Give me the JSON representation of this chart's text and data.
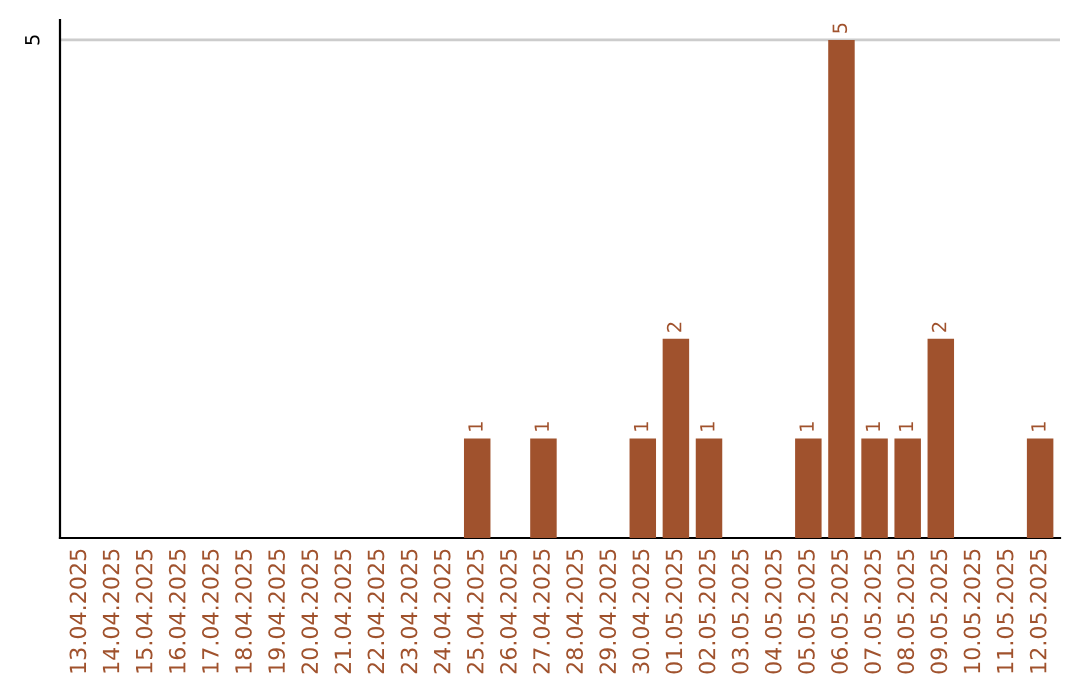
{
  "chart_data": {
    "type": "bar",
    "categories": [
      "13.04.2025",
      "14.04.2025",
      "15.04.2025",
      "16.04.2025",
      "17.04.2025",
      "18.04.2025",
      "19.04.2025",
      "20.04.2025",
      "21.04.2025",
      "22.04.2025",
      "23.04.2025",
      "24.04.2025",
      "25.04.2025",
      "26.04.2025",
      "27.04.2025",
      "28.04.2025",
      "29.04.2025",
      "30.04.2025",
      "01.05.2025",
      "02.05.2025",
      "03.05.2025",
      "04.05.2025",
      "05.05.2025",
      "06.05.2025",
      "07.05.2025",
      "08.05.2025",
      "09.05.2025",
      "10.05.2025",
      "11.05.2025",
      "12.05.2025"
    ],
    "values": [
      null,
      null,
      null,
      null,
      null,
      null,
      null,
      null,
      null,
      null,
      null,
      null,
      1,
      null,
      1,
      null,
      null,
      1,
      2,
      1,
      null,
      null,
      1,
      5,
      1,
      1,
      2,
      null,
      null,
      1
    ],
    "value_labels": [
      null,
      null,
      null,
      null,
      null,
      null,
      null,
      null,
      null,
      null,
      null,
      null,
      "1",
      null,
      "1",
      null,
      null,
      "1",
      "2",
      "1",
      null,
      null,
      "1",
      "5",
      "1",
      "1",
      "2",
      null,
      null,
      "1"
    ],
    "color": "#a0522d",
    "ylim": [
      0,
      5.2
    ],
    "ref_lines": [
      {
        "axis": "y",
        "value": 5,
        "label": "5",
        "color": "#cccccc"
      }
    ]
  }
}
